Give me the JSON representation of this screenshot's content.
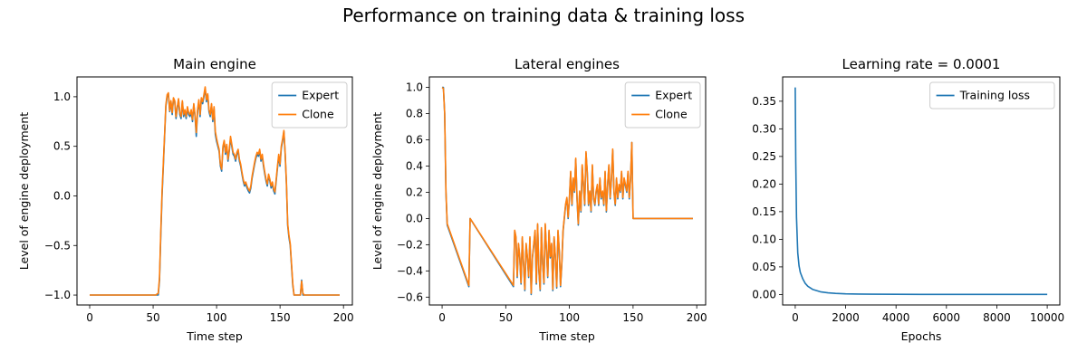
{
  "figure": {
    "title": "Performance on training data & training loss"
  },
  "chart_data": [
    {
      "type": "line",
      "title": "Main engine",
      "xlabel": "Time step",
      "ylabel": "Level of engine deployment",
      "xlim": [
        -10,
        207
      ],
      "ylim": [
        -1.1,
        1.2
      ],
      "xticks": [
        "0",
        "50",
        "100",
        "150",
        "200"
      ],
      "yticks": [
        "-1.0",
        "-0.5",
        "0.0",
        "0.5",
        "1.0"
      ],
      "legend": {
        "position": "top-right",
        "entries": [
          "Expert",
          "Clone"
        ]
      },
      "series": [
        {
          "name": "Expert",
          "color": "#1f77b4",
          "x": [
            0,
            20,
            40,
            52,
            54,
            55,
            56,
            57,
            58,
            59,
            60,
            61,
            62,
            63,
            64,
            65,
            66,
            67,
            68,
            69,
            70,
            71,
            72,
            73,
            74,
            75,
            76,
            77,
            78,
            79,
            80,
            81,
            82,
            83,
            84,
            85,
            86,
            87,
            88,
            89,
            90,
            91,
            92,
            93,
            94,
            95,
            96,
            97,
            98,
            99,
            100,
            101,
            102,
            103,
            104,
            105,
            106,
            107,
            108,
            109,
            110,
            111,
            112,
            113,
            114,
            115,
            116,
            117,
            118,
            119,
            120,
            121,
            122,
            123,
            124,
            125,
            126,
            127,
            128,
            129,
            130,
            131,
            132,
            133,
            134,
            135,
            136,
            137,
            138,
            139,
            140,
            141,
            142,
            143,
            144,
            145,
            146,
            147,
            148,
            149,
            150,
            151,
            152,
            153,
            154,
            155,
            156,
            157,
            158,
            159,
            160,
            161,
            162,
            163,
            164,
            165,
            166,
            167,
            168,
            169,
            170,
            175,
            180,
            185,
            190,
            197
          ],
          "y": [
            -1.0,
            -1.0,
            -1.0,
            -1.0,
            -1.0,
            -0.85,
            -0.4,
            0.0,
            0.3,
            0.6,
            0.9,
            1.0,
            1.03,
            0.85,
            0.95,
            0.82,
            0.98,
            0.95,
            0.78,
            0.88,
            0.97,
            0.82,
            0.78,
            0.95,
            0.8,
            0.85,
            0.78,
            0.88,
            0.82,
            0.8,
            0.85,
            0.75,
            0.92,
            0.8,
            0.6,
            0.85,
            0.95,
            0.8,
            0.98,
            0.93,
            1.0,
            1.08,
            0.95,
            1.02,
            0.85,
            0.8,
            0.92,
            0.75,
            0.88,
            0.62,
            0.55,
            0.5,
            0.45,
            0.3,
            0.25,
            0.48,
            0.55,
            0.42,
            0.5,
            0.35,
            0.45,
            0.58,
            0.5,
            0.42,
            0.4,
            0.35,
            0.42,
            0.45,
            0.35,
            0.3,
            0.22,
            0.15,
            0.1,
            0.12,
            0.08,
            0.05,
            0.03,
            0.08,
            0.18,
            0.25,
            0.32,
            0.38,
            0.42,
            0.4,
            0.45,
            0.35,
            0.4,
            0.3,
            0.22,
            0.15,
            0.1,
            0.2,
            0.15,
            0.08,
            0.12,
            0.05,
            0.02,
            0.15,
            0.28,
            0.4,
            0.3,
            0.48,
            0.55,
            0.65,
            0.42,
            0.12,
            -0.3,
            -0.42,
            -0.5,
            -0.7,
            -0.9,
            -1.0,
            -1.0,
            -1.0,
            -1.0,
            -1.0,
            -1.0,
            -0.85,
            -1.0,
            -1.0,
            -1.0,
            -1.0,
            -1.0,
            -1.0,
            -1.0,
            -1.0
          ]
        },
        {
          "name": "Clone",
          "color": "#ff7f0e",
          "x": [
            0,
            20,
            40,
            52,
            54,
            55,
            56,
            57,
            58,
            59,
            60,
            61,
            62,
            63,
            64,
            65,
            66,
            67,
            68,
            69,
            70,
            71,
            72,
            73,
            74,
            75,
            76,
            77,
            78,
            79,
            80,
            81,
            82,
            83,
            84,
            85,
            86,
            87,
            88,
            89,
            90,
            91,
            92,
            93,
            94,
            95,
            96,
            97,
            98,
            99,
            100,
            101,
            102,
            103,
            104,
            105,
            106,
            107,
            108,
            109,
            110,
            111,
            112,
            113,
            114,
            115,
            116,
            117,
            118,
            119,
            120,
            121,
            122,
            123,
            124,
            125,
            126,
            127,
            128,
            129,
            130,
            131,
            132,
            133,
            134,
            135,
            136,
            137,
            138,
            139,
            140,
            141,
            142,
            143,
            144,
            145,
            146,
            147,
            148,
            149,
            150,
            151,
            152,
            153,
            154,
            155,
            156,
            157,
            158,
            159,
            160,
            161,
            162,
            163,
            164,
            165,
            166,
            167,
            168,
            169,
            170,
            175,
            180,
            185,
            190,
            197
          ],
          "y": [
            -1.0,
            -1.0,
            -1.0,
            -1.0,
            -0.98,
            -0.82,
            -0.36,
            0.04,
            0.33,
            0.62,
            0.92,
            1.02,
            1.04,
            0.86,
            0.96,
            0.84,
            0.99,
            0.96,
            0.8,
            0.9,
            0.98,
            0.84,
            0.8,
            0.96,
            0.82,
            0.87,
            0.8,
            0.9,
            0.84,
            0.82,
            0.87,
            0.77,
            0.93,
            0.82,
            0.64,
            0.87,
            0.97,
            0.82,
            0.99,
            0.95,
            1.02,
            1.1,
            0.97,
            1.03,
            0.87,
            0.82,
            0.93,
            0.77,
            0.9,
            0.65,
            0.58,
            0.52,
            0.47,
            0.32,
            0.27,
            0.5,
            0.56,
            0.44,
            0.52,
            0.37,
            0.47,
            0.6,
            0.52,
            0.44,
            0.42,
            0.37,
            0.44,
            0.47,
            0.37,
            0.32,
            0.24,
            0.17,
            0.12,
            0.14,
            0.1,
            0.07,
            0.05,
            0.1,
            0.2,
            0.27,
            0.34,
            0.4,
            0.44,
            0.42,
            0.47,
            0.37,
            0.42,
            0.32,
            0.24,
            0.17,
            0.12,
            0.22,
            0.17,
            0.1,
            0.14,
            0.07,
            0.04,
            0.17,
            0.3,
            0.42,
            0.32,
            0.5,
            0.57,
            0.66,
            0.44,
            0.14,
            -0.28,
            -0.4,
            -0.48,
            -0.68,
            -0.88,
            -1.0,
            -1.0,
            -1.0,
            -1.0,
            -1.0,
            -1.0,
            -0.86,
            -0.98,
            -1.0,
            -1.0,
            -1.0,
            -1.0,
            -1.0,
            -1.0,
            -1.0
          ]
        }
      ]
    },
    {
      "type": "line",
      "title": "Lateral engines",
      "xlabel": "Time step",
      "ylabel": "Level of engine deployment",
      "xlim": [
        -10,
        207
      ],
      "ylim": [
        -0.66,
        1.08
      ],
      "xticks": [
        "0",
        "50",
        "100",
        "150",
        "200"
      ],
      "yticks": [
        "-0.6",
        "-0.4",
        "-0.2",
        "0.0",
        "0.2",
        "0.4",
        "0.6",
        "0.8",
        "1.0"
      ],
      "legend": {
        "position": "top-right",
        "entries": [
          "Expert",
          "Clone"
        ]
      },
      "series": [
        {
          "name": "Expert",
          "color": "#1f77b4",
          "x": [
            0,
            1,
            2,
            3,
            4,
            21,
            22,
            56,
            57,
            58,
            59,
            60,
            61,
            62,
            63,
            64,
            65,
            66,
            67,
            68,
            69,
            70,
            71,
            72,
            73,
            74,
            75,
            76,
            77,
            78,
            79,
            80,
            81,
            82,
            83,
            84,
            85,
            86,
            87,
            88,
            89,
            90,
            91,
            92,
            93,
            94,
            95,
            96,
            97,
            98,
            99,
            100,
            101,
            102,
            103,
            104,
            105,
            106,
            107,
            108,
            109,
            110,
            111,
            112,
            113,
            114,
            115,
            116,
            117,
            118,
            119,
            120,
            121,
            122,
            123,
            124,
            125,
            126,
            127,
            128,
            129,
            130,
            131,
            132,
            133,
            134,
            135,
            136,
            137,
            138,
            139,
            140,
            141,
            142,
            143,
            144,
            145,
            146,
            147,
            148,
            149,
            150,
            151,
            152,
            197
          ],
          "y": [
            1.0,
            1.0,
            0.8,
            0.2,
            -0.05,
            -0.52,
            0.0,
            -0.52,
            -0.1,
            -0.15,
            -0.45,
            -0.2,
            -0.3,
            -0.5,
            -0.15,
            -0.35,
            -0.55,
            -0.2,
            -0.3,
            -0.45,
            -0.15,
            -0.58,
            -0.3,
            -0.2,
            -0.1,
            -0.5,
            -0.05,
            -0.4,
            -0.55,
            -0.08,
            -0.35,
            -0.5,
            -0.05,
            -0.25,
            -0.45,
            -0.1,
            -0.3,
            -0.2,
            -0.55,
            -0.15,
            -0.3,
            -0.53,
            -0.1,
            -0.25,
            -0.52,
            -0.35,
            -0.1,
            0.0,
            0.1,
            0.15,
            0.0,
            0.15,
            0.35,
            0.1,
            0.3,
            0.2,
            0.45,
            0.15,
            -0.05,
            0.2,
            0.05,
            0.4,
            0.25,
            0.1,
            0.5,
            0.35,
            0.1,
            0.2,
            0.05,
            0.4,
            0.15,
            0.1,
            0.2,
            0.25,
            0.1,
            0.3,
            0.15,
            0.2,
            0.1,
            0.35,
            0.05,
            0.25,
            0.4,
            0.15,
            0.3,
            0.52,
            0.2,
            0.1,
            0.3,
            0.15,
            0.25,
            0.2,
            0.35,
            0.15,
            0.3,
            0.25,
            0.2,
            0.35,
            0.15,
            0.3,
            0.58,
            0.0,
            0.0,
            0.0,
            0.0
          ]
        },
        {
          "name": "Clone",
          "color": "#ff7f0e",
          "x": [
            0,
            1,
            2,
            3,
            4,
            21,
            22,
            56,
            57,
            58,
            59,
            60,
            61,
            62,
            63,
            64,
            65,
            66,
            67,
            68,
            69,
            70,
            71,
            72,
            73,
            74,
            75,
            76,
            77,
            78,
            79,
            80,
            81,
            82,
            83,
            84,
            85,
            86,
            87,
            88,
            89,
            90,
            91,
            92,
            93,
            94,
            95,
            96,
            97,
            98,
            99,
            100,
            101,
            102,
            103,
            104,
            105,
            106,
            107,
            108,
            109,
            110,
            111,
            112,
            113,
            114,
            115,
            116,
            117,
            118,
            119,
            120,
            121,
            122,
            123,
            124,
            125,
            126,
            127,
            128,
            129,
            130,
            131,
            132,
            133,
            134,
            135,
            136,
            137,
            138,
            139,
            140,
            141,
            142,
            143,
            144,
            145,
            146,
            147,
            148,
            149,
            150,
            151,
            152,
            197
          ],
          "y": [
            1.0,
            0.99,
            0.8,
            0.21,
            -0.04,
            -0.51,
            0.0,
            -0.51,
            -0.09,
            -0.14,
            -0.44,
            -0.19,
            -0.29,
            -0.49,
            -0.14,
            -0.34,
            -0.54,
            -0.19,
            -0.29,
            -0.44,
            -0.14,
            -0.57,
            -0.29,
            -0.19,
            -0.09,
            -0.49,
            -0.04,
            -0.39,
            -0.54,
            -0.07,
            -0.34,
            -0.49,
            -0.04,
            -0.24,
            -0.44,
            -0.09,
            -0.29,
            -0.19,
            -0.54,
            -0.14,
            -0.29,
            -0.52,
            -0.09,
            -0.24,
            -0.51,
            -0.34,
            -0.09,
            0.01,
            0.11,
            0.16,
            0.01,
            0.16,
            0.36,
            0.11,
            0.31,
            0.21,
            0.46,
            0.16,
            -0.04,
            0.21,
            0.06,
            0.41,
            0.26,
            0.11,
            0.51,
            0.36,
            0.11,
            0.21,
            0.06,
            0.41,
            0.16,
            0.11,
            0.21,
            0.26,
            0.11,
            0.31,
            0.16,
            0.21,
            0.11,
            0.36,
            0.06,
            0.26,
            0.41,
            0.16,
            0.31,
            0.53,
            0.21,
            0.11,
            0.31,
            0.16,
            0.26,
            0.21,
            0.36,
            0.16,
            0.31,
            0.26,
            0.21,
            0.36,
            0.16,
            0.31,
            0.58,
            0.0,
            0.0,
            0.0,
            0.0
          ]
        }
      ]
    },
    {
      "type": "line",
      "title": "Learning rate = 0.0001",
      "xlabel": "Epochs",
      "ylabel": "",
      "xlim": [
        -500,
        10500
      ],
      "ylim": [
        -0.019,
        0.394
      ],
      "xticks": [
        "0",
        "2000",
        "4000",
        "6000",
        "8000",
        "10000"
      ],
      "yticks": [
        "0.00",
        "0.05",
        "0.10",
        "0.15",
        "0.20",
        "0.25",
        "0.30",
        "0.35"
      ],
      "legend": {
        "position": "top-right",
        "entries": [
          "Training loss"
        ]
      },
      "series": [
        {
          "name": "Training loss",
          "color": "#1f77b4",
          "x": [
            0,
            20,
            50,
            100,
            150,
            200,
            300,
            400,
            500,
            700,
            1000,
            1300,
            1600,
            2000,
            2500,
            3000,
            4000,
            5000,
            6000,
            7000,
            8000,
            9000,
            10000
          ],
          "y": [
            0.375,
            0.24,
            0.14,
            0.075,
            0.052,
            0.04,
            0.028,
            0.02,
            0.015,
            0.009,
            0.005,
            0.003,
            0.002,
            0.0012,
            0.0008,
            0.0005,
            0.0003,
            0.0002,
            0.0001,
            0.0001,
            0.0001,
            0.0001,
            0.0001
          ]
        }
      ]
    }
  ]
}
